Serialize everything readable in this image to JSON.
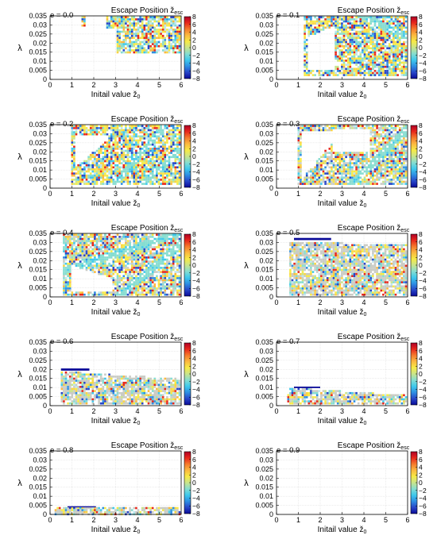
{
  "figure": {
    "colorscale": {
      "ticks": [
        "8",
        "6",
        "4",
        "2",
        "0",
        "−2",
        "−4",
        "−6",
        "−8"
      ],
      "colors": [
        "#b00026",
        "#e8281c",
        "#f57a2d",
        "#fbb940",
        "#f7ea45",
        "#c9e58a",
        "#86ddd0",
        "#3fc9ec",
        "#2e8fe3",
        "#2846c8",
        "#0a0a98"
      ]
    }
  },
  "chart_data": [
    {
      "type": "heatmap",
      "title": "Escape Position ž",
      "title_sub": "esc",
      "label": "e = 0.0",
      "xlabel": "Initail value ž",
      "xlabel_sub": "0",
      "ylabel": "λ",
      "xlim": [
        0,
        6
      ],
      "ylim": [
        0,
        0.035
      ],
      "xticks": [
        "0",
        "1",
        "2",
        "3",
        "4",
        "5",
        "6"
      ],
      "yticks": [
        "0",
        "0.005",
        "0.01",
        "0.015",
        "0.02",
        "0.025",
        "0.03",
        "0.035"
      ],
      "colorbar_range": [
        -8,
        8
      ],
      "grid": true
    },
    {
      "type": "heatmap",
      "title": "Escape Position ž",
      "title_sub": "esc",
      "label": "e = 0.1",
      "xlabel": "Initail value ž",
      "xlabel_sub": "0",
      "ylabel": "λ",
      "xlim": [
        0,
        6
      ],
      "ylim": [
        0,
        0.035
      ],
      "xticks": [
        "0",
        "1",
        "2",
        "3",
        "4",
        "5",
        "6"
      ],
      "yticks": [
        "0",
        "0.005",
        "0.01",
        "0.015",
        "0.02",
        "0.025",
        "0.03",
        "0.035"
      ],
      "colorbar_range": [
        -8,
        8
      ],
      "grid": true
    },
    {
      "type": "heatmap",
      "title": "Escape Position ž",
      "title_sub": "esc",
      "label": "e = 0.2",
      "xlabel": "Initail value ž",
      "xlabel_sub": "0",
      "ylabel": "λ",
      "xlim": [
        0,
        6
      ],
      "ylim": [
        0,
        0.035
      ],
      "xticks": [
        "0",
        "1",
        "2",
        "3",
        "4",
        "5",
        "6"
      ],
      "yticks": [
        "0",
        "0.005",
        "0.01",
        "0.015",
        "0.02",
        "0.025",
        "0.03",
        "0.035"
      ],
      "colorbar_range": [
        -8,
        8
      ],
      "grid": true
    },
    {
      "type": "heatmap",
      "title": "Escape Position ž",
      "title_sub": "esc",
      "label": "e = 0.3",
      "xlabel": "Initail value ž",
      "xlabel_sub": "0",
      "ylabel": "λ",
      "xlim": [
        0,
        6
      ],
      "ylim": [
        0,
        0.035
      ],
      "xticks": [
        "0",
        "1",
        "2",
        "3",
        "4",
        "5",
        "6"
      ],
      "yticks": [
        "0",
        "0.005",
        "0.01",
        "0.015",
        "0.02",
        "0.025",
        "0.03",
        "0.035"
      ],
      "colorbar_range": [
        -8,
        8
      ],
      "grid": true
    },
    {
      "type": "heatmap",
      "title": "Escape Position ž",
      "title_sub": "esc",
      "label": "e = 0.4",
      "xlabel": "Initail value ž",
      "xlabel_sub": "0",
      "ylabel": "λ",
      "xlim": [
        0,
        6
      ],
      "ylim": [
        0,
        0.035
      ],
      "xticks": [
        "0",
        "1",
        "2",
        "3",
        "4",
        "5",
        "6"
      ],
      "yticks": [
        "0",
        "0.005",
        "0.01",
        "0.015",
        "0.02",
        "0.025",
        "0.03",
        "0.035"
      ],
      "colorbar_range": [
        -8,
        8
      ],
      "grid": true
    },
    {
      "type": "heatmap",
      "title": "Escape Position ž",
      "title_sub": "esc",
      "label": "e = 0.5",
      "xlabel": "Initail value ž",
      "xlabel_sub": "0",
      "ylabel": "λ",
      "xlim": [
        0,
        6
      ],
      "ylim": [
        0,
        0.035
      ],
      "xticks": [
        "0",
        "1",
        "2",
        "3",
        "4",
        "5",
        "6"
      ],
      "yticks": [
        "0",
        "0.005",
        "0.01",
        "0.015",
        "0.02",
        "0.025",
        "0.03",
        "0.035"
      ],
      "colorbar_range": [
        -8,
        8
      ],
      "grid": true
    },
    {
      "type": "heatmap",
      "title": "Escape Position ž",
      "title_sub": "esc",
      "label": "e = 0.6",
      "xlabel": "Initail value ž",
      "xlabel_sub": "0",
      "ylabel": "λ",
      "xlim": [
        0,
        6
      ],
      "ylim": [
        0,
        0.035
      ],
      "xticks": [
        "0",
        "1",
        "2",
        "3",
        "4",
        "5",
        "6"
      ],
      "yticks": [
        "0",
        "0.005",
        "0.01",
        "0.015",
        "0.02",
        "0.025",
        "0.03",
        "0.035"
      ],
      "colorbar_range": [
        -8,
        8
      ],
      "grid": true
    },
    {
      "type": "heatmap",
      "title": "Escape Position ž",
      "title_sub": "esc",
      "label": "e = 0.7",
      "xlabel": "Initail value ž",
      "xlabel_sub": "0",
      "ylabel": "λ",
      "xlim": [
        0,
        6
      ],
      "ylim": [
        0,
        0.035
      ],
      "xticks": [
        "0",
        "1",
        "2",
        "3",
        "4",
        "5",
        "6"
      ],
      "yticks": [
        "0",
        "0.005",
        "0.01",
        "0.015",
        "0.02",
        "0.025",
        "0.03",
        "0.035"
      ],
      "colorbar_range": [
        -8,
        8
      ],
      "grid": true
    },
    {
      "type": "heatmap",
      "title": "Escape Position ž",
      "title_sub": "esc",
      "label": "e = 0.8",
      "xlabel": "Initail value ž",
      "xlabel_sub": "0",
      "ylabel": "λ",
      "xlim": [
        0,
        6
      ],
      "ylim": [
        0,
        0.035
      ],
      "xticks": [
        "0",
        "1",
        "2",
        "3",
        "4",
        "5",
        "6"
      ],
      "yticks": [
        "0",
        "0.005",
        "0.01",
        "0.015",
        "0.02",
        "0.025",
        "0.03",
        "0.035"
      ],
      "colorbar_range": [
        -8,
        8
      ],
      "grid": true
    },
    {
      "type": "heatmap",
      "title": "Escape Position ž",
      "title_sub": "esc",
      "label": "e = 0.9",
      "xlabel": "Initail value ž",
      "xlabel_sub": "0",
      "ylabel": "λ",
      "xlim": [
        0,
        6
      ],
      "ylim": [
        0,
        0.035
      ],
      "xticks": [
        "0",
        "1",
        "2",
        "3",
        "4",
        "5",
        "6"
      ],
      "yticks": [
        "0",
        "0.005",
        "0.01",
        "0.015",
        "0.02",
        "0.025",
        "0.03",
        "0.035"
      ],
      "colorbar_range": [
        -8,
        8
      ],
      "grid": true
    }
  ]
}
